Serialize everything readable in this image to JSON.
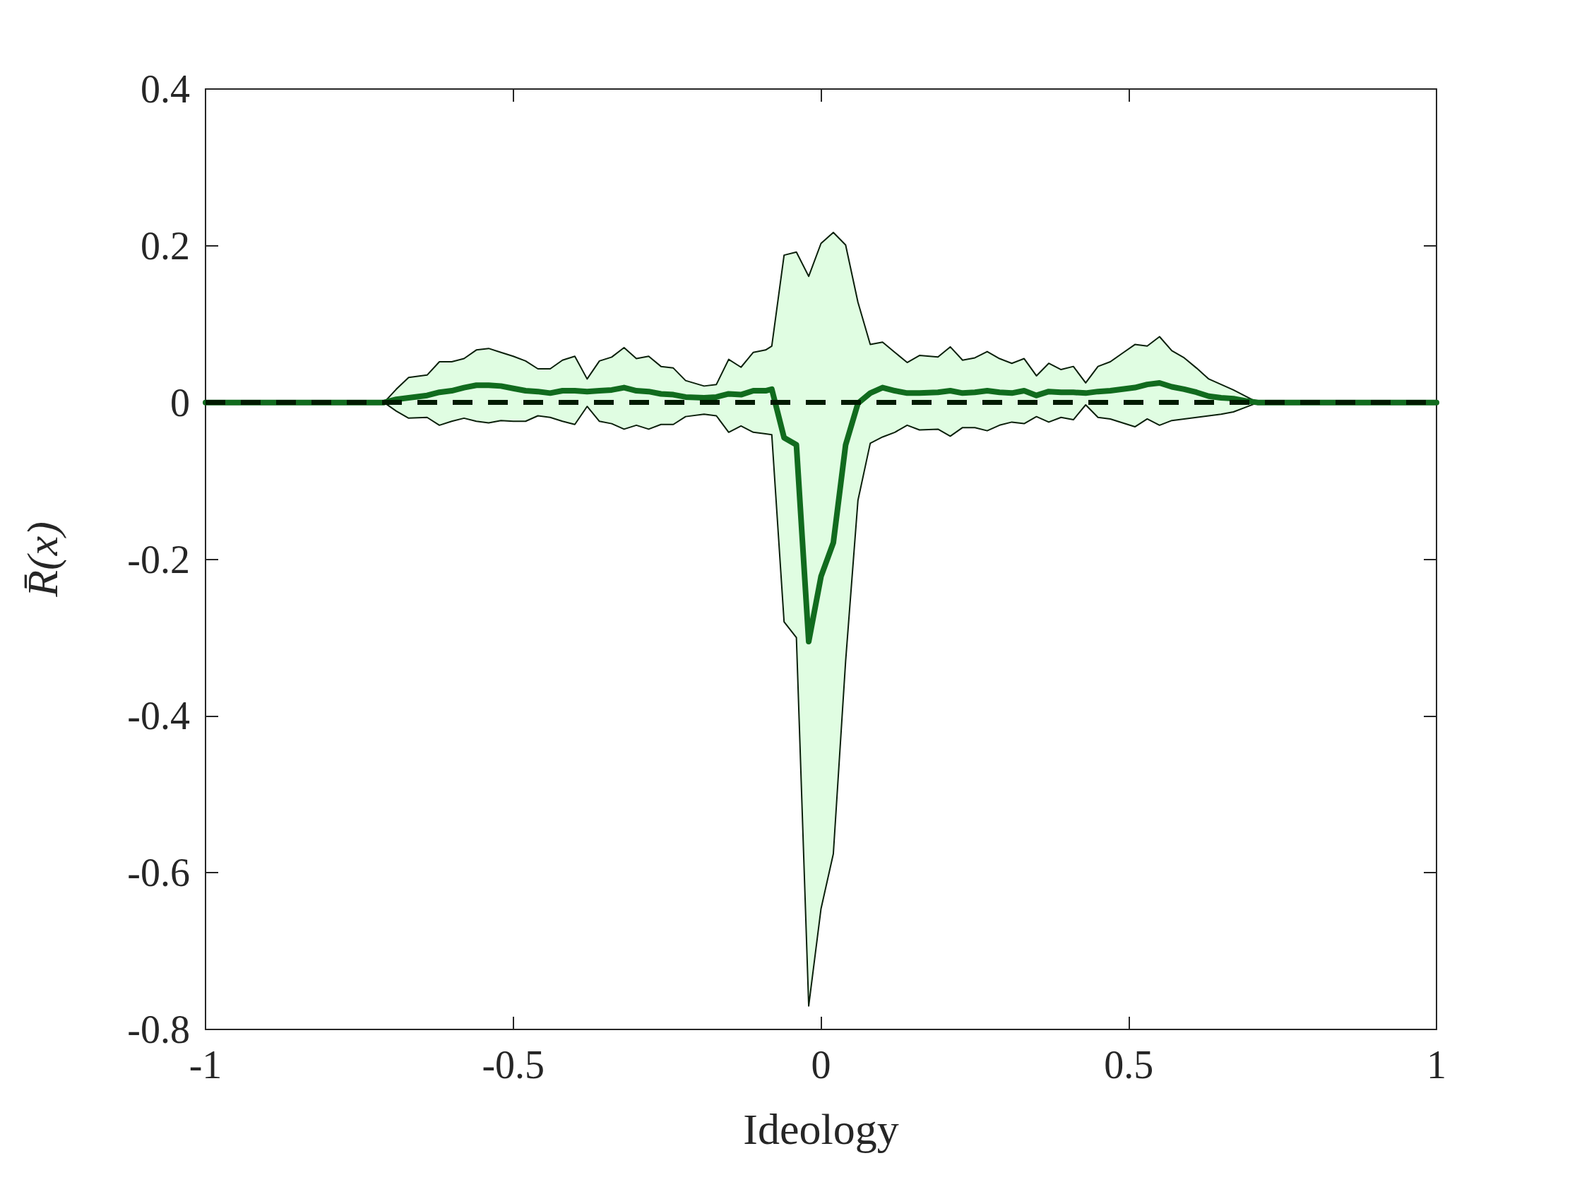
{
  "chart_data": {
    "type": "line",
    "xlabel": "Ideology",
    "ylabel": "R̄(x)",
    "x": [
      -1,
      -0.71,
      -0.69,
      -0.67,
      -0.64,
      -0.62,
      -0.6,
      -0.58,
      -0.56,
      -0.54,
      -0.52,
      -0.5,
      -0.48,
      -0.46,
      -0.44,
      -0.42,
      -0.4,
      -0.38,
      -0.36,
      -0.34,
      -0.32,
      -0.3,
      -0.28,
      -0.26,
      -0.24,
      -0.22,
      -0.19,
      -0.17,
      -0.15,
      -0.13,
      -0.11,
      -0.09,
      -0.08,
      -0.06,
      -0.04,
      -0.02,
      0,
      0.02,
      0.04,
      0.06,
      0.08,
      0.1,
      0.12,
      0.14,
      0.16,
      0.19,
      0.21,
      0.23,
      0.25,
      0.27,
      0.29,
      0.31,
      0.33,
      0.35,
      0.37,
      0.39,
      0.41,
      0.43,
      0.45,
      0.47,
      0.49,
      0.51,
      0.53,
      0.55,
      0.57,
      0.59,
      0.61,
      0.63,
      0.65,
      0.67,
      0.69,
      0.71,
      1
    ],
    "series": [
      {
        "color": "#116b1e",
        "values": [
          0,
          0,
          0.004,
          0.006,
          0.009,
          0.013,
          0.015,
          0.019,
          0.022,
          0.022,
          0.021,
          0.018,
          0.015,
          0.014,
          0.012,
          0.015,
          0.015,
          0.014,
          0.015,
          0.016,
          0.019,
          0.015,
          0.014,
          0.011,
          0.01,
          0.007,
          0.006,
          0.007,
          0.011,
          0.01,
          0.015,
          0.015,
          0.017,
          -0.045,
          -0.054,
          -0.305,
          -0.222,
          -0.179,
          -0.054,
          -0.001,
          0.012,
          0.019,
          0.015,
          0.012,
          0.012,
          0.013,
          0.015,
          0.012,
          0.013,
          0.015,
          0.013,
          0.012,
          0.015,
          0.009,
          0.014,
          0.013,
          0.013,
          0.012,
          0.014,
          0.015,
          0.017,
          0.019,
          0.023,
          0.025,
          0.02,
          0.017,
          0.013,
          0.008,
          0.006,
          0.005,
          0.002,
          0,
          0
        ],
        "upper": [
          0,
          0,
          0.017,
          0.032,
          0.035,
          0.052,
          0.052,
          0.056,
          0.067,
          0.069,
          0.064,
          0.059,
          0.053,
          0.043,
          0.043,
          0.054,
          0.059,
          0.03,
          0.053,
          0.058,
          0.07,
          0.056,
          0.059,
          0.046,
          0.044,
          0.028,
          0.021,
          0.023,
          0.055,
          0.045,
          0.064,
          0.067,
          0.072,
          0.188,
          0.192,
          0.161,
          0.203,
          0.217,
          0.201,
          0.128,
          0.074,
          0.077,
          0.064,
          0.051,
          0.06,
          0.058,
          0.071,
          0.054,
          0.057,
          0.065,
          0.056,
          0.05,
          0.056,
          0.034,
          0.05,
          0.042,
          0.046,
          0.025,
          0.046,
          0.052,
          0.063,
          0.074,
          0.072,
          0.084,
          0.066,
          0.057,
          0.044,
          0.03,
          0.023,
          0.016,
          0.008,
          0,
          0
        ],
        "lower": [
          0,
          0,
          -0.011,
          -0.02,
          -0.019,
          -0.029,
          -0.024,
          -0.02,
          -0.024,
          -0.026,
          -0.023,
          -0.024,
          -0.024,
          -0.017,
          -0.019,
          -0.024,
          -0.028,
          -0.005,
          -0.024,
          -0.027,
          -0.034,
          -0.029,
          -0.034,
          -0.028,
          -0.028,
          -0.018,
          -0.015,
          -0.017,
          -0.038,
          -0.03,
          -0.038,
          -0.04,
          -0.041,
          -0.28,
          -0.3,
          -0.77,
          -0.646,
          -0.576,
          -0.33,
          -0.125,
          -0.052,
          -0.044,
          -0.038,
          -0.029,
          -0.035,
          -0.034,
          -0.043,
          -0.032,
          -0.032,
          -0.036,
          -0.029,
          -0.025,
          -0.027,
          -0.018,
          -0.025,
          -0.019,
          -0.022,
          -0.003,
          -0.019,
          -0.021,
          -0.026,
          -0.031,
          -0.021,
          -0.029,
          -0.023,
          -0.021,
          -0.019,
          -0.017,
          -0.015,
          -0.012,
          -0.006,
          0,
          0
        ]
      }
    ],
    "ref_lines": [
      {
        "axis": "y",
        "value": 0,
        "color": "#001a00",
        "line_style": "dashed"
      }
    ],
    "xlim": [
      -1,
      1
    ],
    "xticks": [
      -1,
      -0.5,
      0,
      0.5,
      1
    ],
    "ylim": [
      -0.8,
      0.4
    ],
    "yticks": [
      -0.8,
      -0.6,
      -0.4,
      -0.2,
      0,
      0.2,
      0.4
    ],
    "grid": false,
    "line_style": "solid"
  }
}
